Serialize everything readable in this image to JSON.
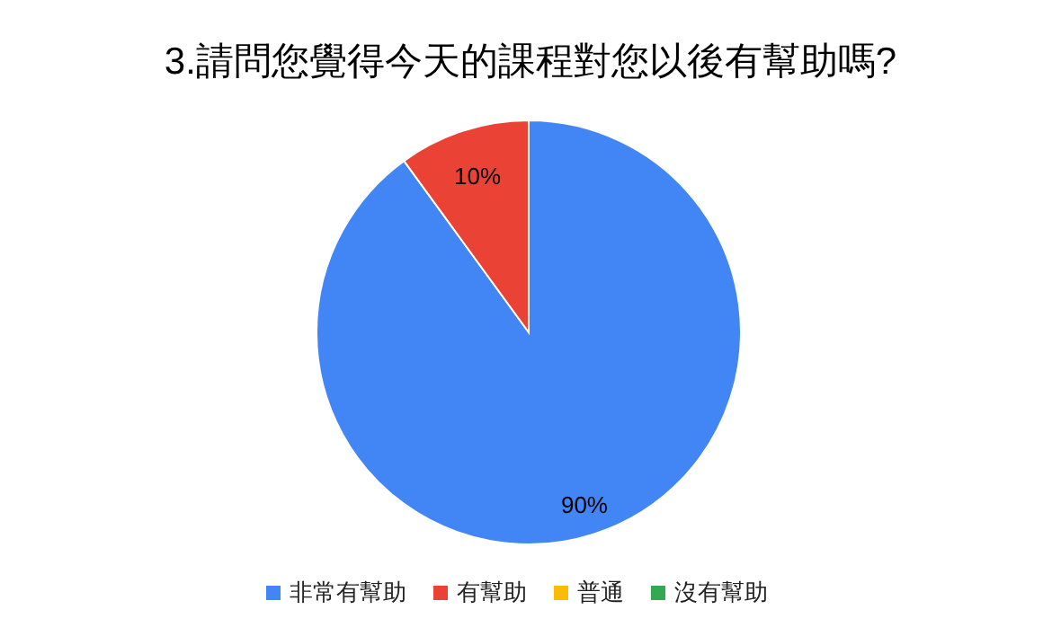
{
  "chart_data": {
    "type": "pie",
    "title": "3.請問您覺得今天的課程對您以後有幫助嗎?",
    "categories": [
      "非常有幫助",
      "有幫助",
      "普通",
      "沒有幫助"
    ],
    "values": [
      90,
      10,
      0,
      0
    ],
    "colors": [
      "#4285f4",
      "#ea4335",
      "#fbbc04",
      "#34a853"
    ],
    "value_labels": [
      "90%",
      "10%",
      null,
      null
    ],
    "legend": "bottom"
  }
}
